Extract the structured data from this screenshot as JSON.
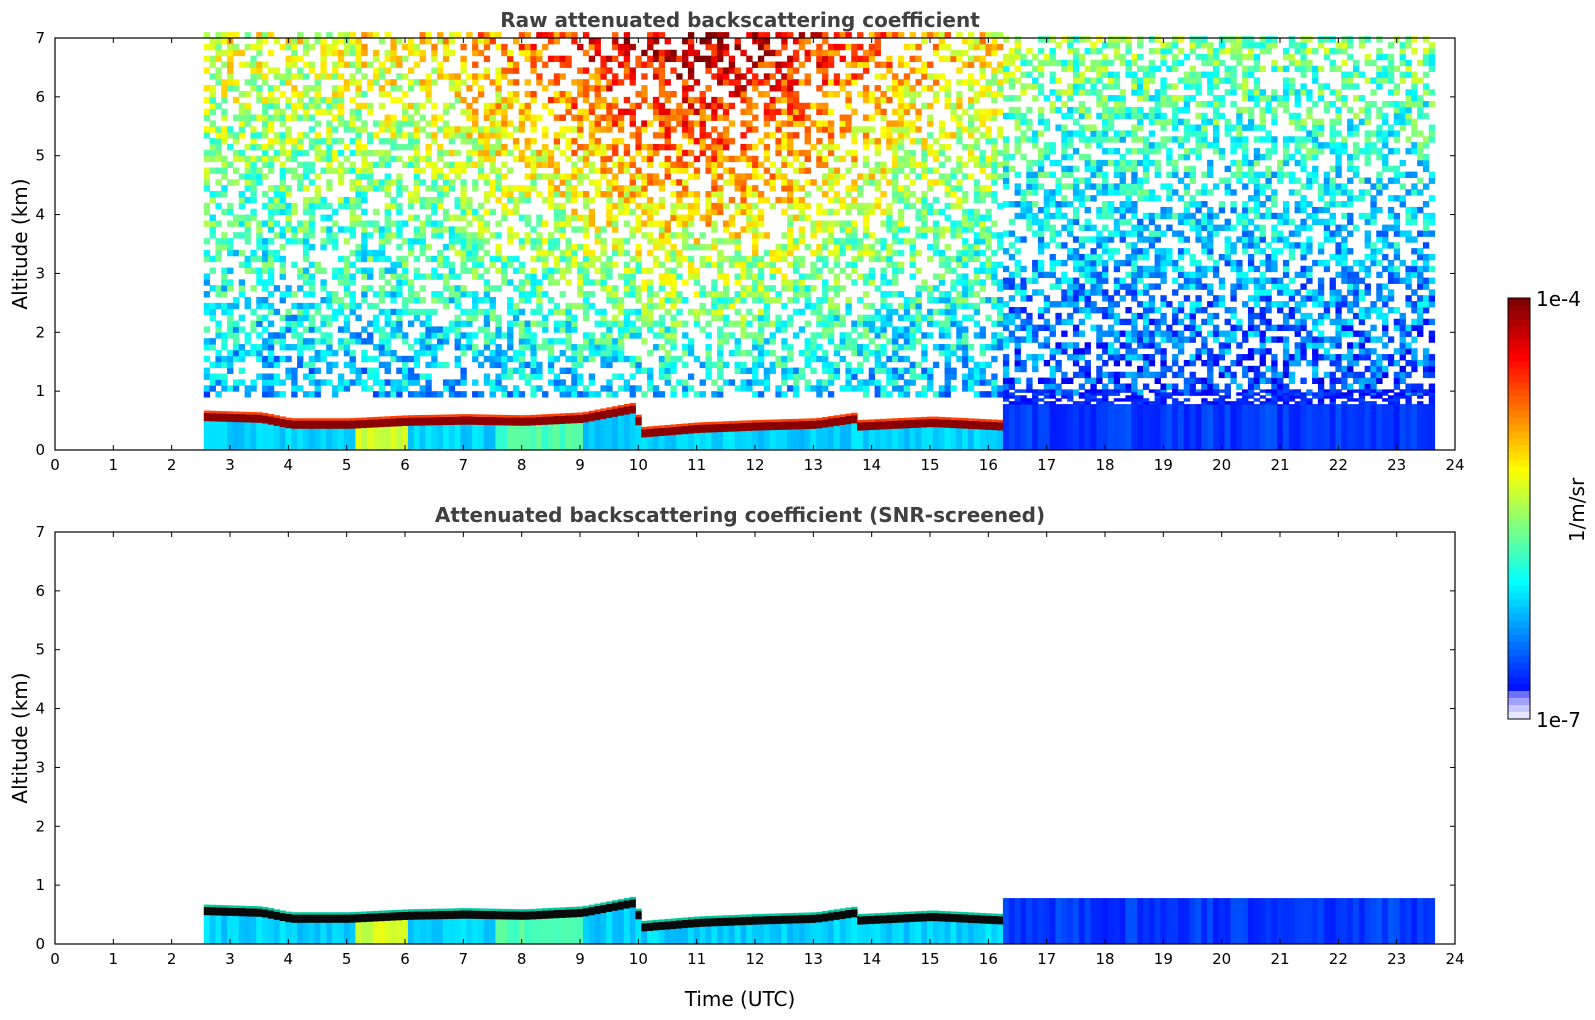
{
  "chart_data": [
    {
      "type": "heatmap",
      "title": "Raw attenuated backscattering coefficient",
      "xlabel": "",
      "ylabel": "Altitude (km)",
      "xlim": [
        0,
        24
      ],
      "ylim": [
        0,
        7
      ],
      "xticks": [
        0,
        1,
        2,
        3,
        4,
        5,
        6,
        7,
        8,
        9,
        10,
        11,
        12,
        13,
        14,
        15,
        16,
        17,
        18,
        19,
        20,
        21,
        22,
        23,
        24
      ],
      "yticks": [
        0,
        1,
        2,
        3,
        4,
        5,
        6,
        7
      ],
      "data_time_range": [
        2.55,
        23.6
      ],
      "cloud_layer": {
        "description": "strong return layer (cloud/aerosol top)",
        "time": [
          2.55,
          3.5,
          4,
          5,
          6,
          7,
          8,
          9,
          9.9,
          10.0,
          11,
          12,
          13,
          13.7,
          13.75,
          15,
          16.2
        ],
        "height": [
          0.58,
          0.55,
          0.45,
          0.45,
          0.5,
          0.52,
          0.5,
          0.55,
          0.72,
          0.3,
          0.38,
          0.42,
          0.45,
          0.55,
          0.42,
          0.48,
          0.42
        ]
      },
      "boundary_layer_top_after_16": 0.78
    },
    {
      "type": "heatmap",
      "title": "Attenuated backscattering coefficient (SNR-screened)",
      "xlabel": "Time (UTC)",
      "ylabel": "Altitude (km)",
      "xlim": [
        0,
        24
      ],
      "ylim": [
        0,
        7
      ],
      "xticks": [
        0,
        1,
        2,
        3,
        4,
        5,
        6,
        7,
        8,
        9,
        10,
        11,
        12,
        13,
        14,
        15,
        16,
        17,
        18,
        19,
        20,
        21,
        22,
        23,
        24
      ],
      "yticks": [
        0,
        1,
        2,
        3,
        4,
        5,
        6,
        7
      ],
      "data_time_range": [
        2.55,
        23.6
      ],
      "screened_top_before_16": 0.7,
      "screened_top_after_16": 0.85
    }
  ],
  "colorbar": {
    "min_label": "1e-7",
    "max_label": "1e-4",
    "label": "1/m/sr",
    "colormap": "jet",
    "colors": [
      "#e6e6ff",
      "#0000ff",
      "#0080ff",
      "#00d0ff",
      "#40ffb0",
      "#c0ff40",
      "#ffff00",
      "#ffa000",
      "#ff3000",
      "#a00000",
      "#780000"
    ]
  }
}
